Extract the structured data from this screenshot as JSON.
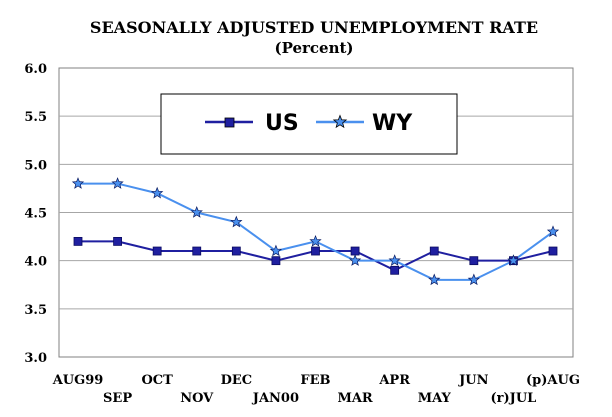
{
  "chart_data": {
    "type": "line",
    "title": "SEASONALLY ADJUSTED UNEMPLOYMENT RATE",
    "subtitle": "(Percent)",
    "xlabel": "",
    "ylabel": "",
    "ylim": [
      3.0,
      6.0
    ],
    "yticks": [
      "3.0",
      "3.5",
      "4.0",
      "4.5",
      "5.0",
      "5.5",
      "6.0"
    ],
    "grid": true,
    "legend_position": "top-center",
    "categories": [
      "AUG99",
      "SEP",
      "OCT",
      "NOV",
      "DEC",
      "JAN00",
      "FEB",
      "MAR",
      "APR",
      "MAY",
      "JUN",
      "(r)JUL",
      "(p)AUG"
    ],
    "series": [
      {
        "name": "US",
        "color": "#1f1fa0",
        "marker": "square",
        "values": [
          4.2,
          4.2,
          4.1,
          4.1,
          4.1,
          4.0,
          4.1,
          4.1,
          3.9,
          4.1,
          4.0,
          4.0,
          4.1
        ]
      },
      {
        "name": "WY",
        "color": "#4a90ee",
        "marker": "star",
        "values": [
          4.8,
          4.8,
          4.7,
          4.5,
          4.4,
          4.1,
          4.2,
          4.0,
          4.0,
          3.8,
          3.8,
          4.0,
          4.3
        ]
      }
    ]
  }
}
